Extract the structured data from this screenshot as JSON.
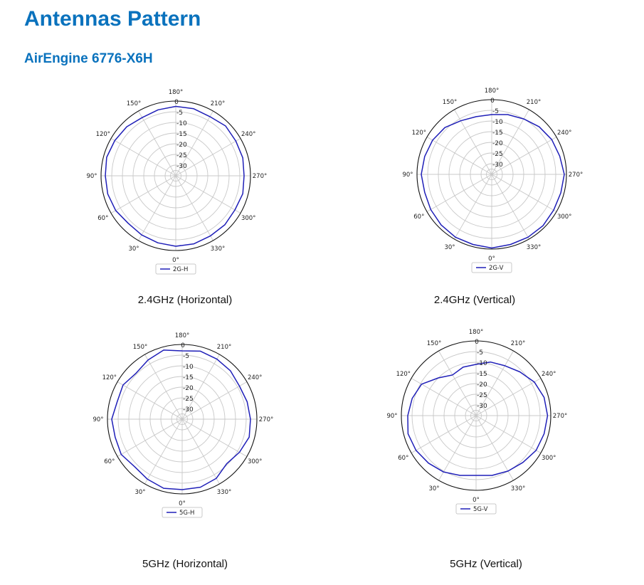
{
  "page": {
    "title": "Antennas Pattern",
    "model": "AirEngine 6776-X6H"
  },
  "colors": {
    "heading": "#0a72bd",
    "series": "#1f1fb8",
    "grid": "#c8c8c8"
  },
  "chart_data": [
    {
      "type": "polar-line",
      "caption": "2.4GHz (Horizontal)",
      "theta_ticks_deg": [
        0,
        30,
        60,
        90,
        120,
        150,
        180,
        210,
        240,
        270,
        300,
        330
      ],
      "r_ticks": [
        0,
        -5,
        -10,
        -15,
        -20,
        -25,
        -30
      ],
      "r_range": [
        -35,
        0
      ],
      "theta_direction": "counter-clockwise",
      "theta_zero_location": "bottom",
      "grid": true,
      "legend": "bottom",
      "series": [
        {
          "name": "2G-H",
          "theta_deg": [
            0,
            15,
            30,
            45,
            60,
            75,
            90,
            105,
            120,
            135,
            150,
            165,
            180,
            195,
            210,
            225,
            240,
            255,
            270,
            285,
            300,
            315,
            330,
            345
          ],
          "values": [
            -2,
            -2.5,
            -3,
            -3.5,
            -2.5,
            -2,
            -2,
            -1.5,
            -2,
            -2.5,
            -3.5,
            -3,
            -2.5,
            -2.5,
            -3,
            -2,
            -2.5,
            -2.5,
            -3,
            -2.5,
            -3,
            -2.5,
            -2.5,
            -2
          ]
        }
      ]
    },
    {
      "type": "polar-line",
      "caption": "2.4GHz (Vertical)",
      "theta_ticks_deg": [
        0,
        30,
        60,
        90,
        120,
        150,
        180,
        210,
        240,
        270,
        300,
        330
      ],
      "r_ticks": [
        0,
        -5,
        -10,
        -15,
        -20,
        -25,
        -30
      ],
      "r_range": [
        -35,
        0
      ],
      "theta_direction": "counter-clockwise",
      "theta_zero_location": "bottom",
      "grid": true,
      "legend": "bottom",
      "series": [
        {
          "name": "2G-V",
          "theta_deg": [
            0,
            15,
            30,
            45,
            60,
            75,
            90,
            105,
            120,
            135,
            150,
            165,
            180,
            195,
            210,
            225,
            240,
            255,
            270,
            285,
            300,
            315,
            330,
            345
          ],
          "values": [
            -0.5,
            -1,
            -1,
            -1.5,
            -2,
            -2.5,
            -2,
            -2.5,
            -3,
            -4,
            -6,
            -7,
            -7,
            -6,
            -5,
            -3.5,
            -2.5,
            -2,
            -1,
            -1.5,
            -1.5,
            -1,
            -1,
            -1
          ]
        }
      ]
    },
    {
      "type": "polar-line",
      "caption": "5GHz (Horizontal)",
      "theta_ticks_deg": [
        0,
        30,
        60,
        90,
        120,
        150,
        180,
        210,
        240,
        270,
        300,
        330
      ],
      "r_ticks": [
        0,
        -5,
        -10,
        -15,
        -20,
        -25,
        -30
      ],
      "r_range": [
        -35,
        0
      ],
      "theta_direction": "counter-clockwise",
      "theta_zero_location": "bottom",
      "grid": true,
      "legend": "bottom",
      "series": [
        {
          "name": "5G-H",
          "theta_deg": [
            0,
            15,
            30,
            45,
            60,
            75,
            90,
            105,
            120,
            135,
            150,
            165,
            180,
            195,
            210,
            225,
            240,
            255,
            270,
            285,
            300,
            315,
            330,
            345
          ],
          "values": [
            -2,
            -1.5,
            -2.5,
            -3.5,
            -2,
            -2.5,
            -2,
            -3.5,
            -3,
            -4.5,
            -3,
            -1.5,
            -3,
            -2,
            -2.5,
            -3,
            -4,
            -3.5,
            -3,
            -2.5,
            -4,
            -5.5,
            -3,
            -2
          ]
        }
      ]
    },
    {
      "type": "polar-line",
      "caption": "5GHz (Vertical)",
      "theta_ticks_deg": [
        0,
        30,
        60,
        90,
        120,
        150,
        180,
        210,
        240,
        270,
        300,
        330
      ],
      "r_ticks": [
        0,
        -5,
        -10,
        -15,
        -20,
        -25,
        -30
      ],
      "r_range": [
        -35,
        0
      ],
      "theta_direction": "counter-clockwise",
      "theta_zero_location": "bottom",
      "grid": true,
      "legend": "bottom",
      "series": [
        {
          "name": "5G-V",
          "theta_deg": [
            0,
            15,
            30,
            45,
            60,
            75,
            90,
            105,
            120,
            135,
            150,
            165,
            180,
            195,
            210,
            225,
            240,
            255,
            270,
            285,
            300,
            315,
            330,
            345
          ],
          "values": [
            -7,
            -6,
            -4.5,
            -3.5,
            -2.5,
            -2,
            -3,
            -4,
            -5.5,
            -10,
            -13,
            -11.5,
            -11,
            -9,
            -8,
            -6,
            -3.5,
            -2,
            -1.5,
            -2,
            -2.5,
            -4,
            -5,
            -6
          ]
        }
      ]
    }
  ]
}
